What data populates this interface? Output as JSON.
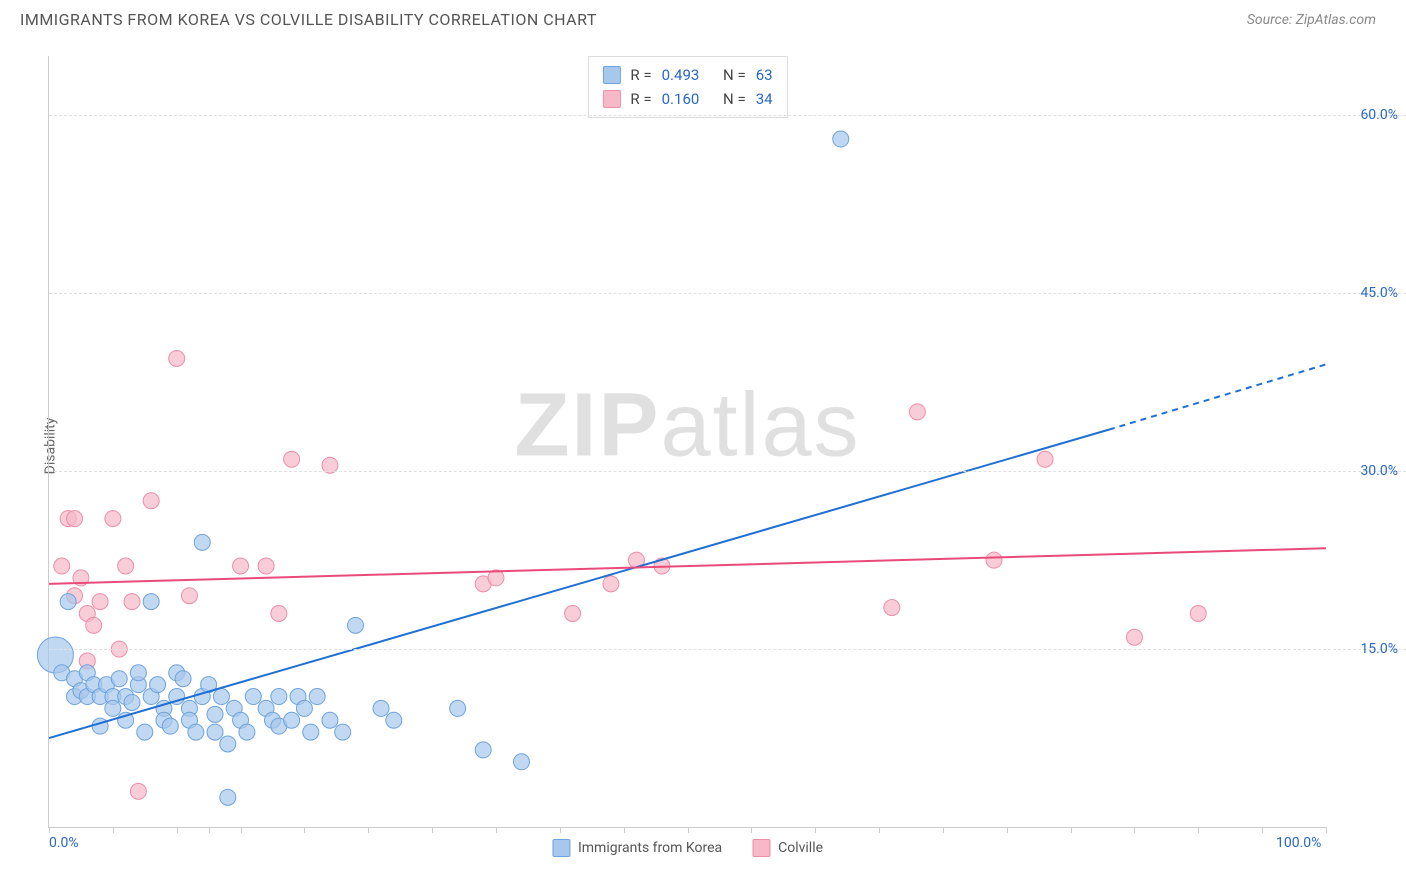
{
  "title": "IMMIGRANTS FROM KOREA VS COLVILLE DISABILITY CORRELATION CHART",
  "source_label": "Source: ZipAtlas.com",
  "y_axis_title": "Disability",
  "watermark": {
    "bold": "ZIP",
    "light": "atlas"
  },
  "chart": {
    "type": "scatter",
    "xlim": [
      0,
      100
    ],
    "ylim": [
      0,
      65
    ],
    "x_tick_positions": [
      0,
      5,
      10,
      12.5,
      15,
      20,
      25,
      30,
      35,
      40,
      45,
      50,
      55,
      60,
      65,
      70,
      75,
      80,
      85,
      90,
      95,
      100
    ],
    "x_tick_labels": [
      {
        "pos": 0,
        "text": "0.0%"
      },
      {
        "pos": 100,
        "text": "100.0%"
      }
    ],
    "y_gridlines": [
      15,
      30,
      45,
      60
    ],
    "y_tick_labels": [
      {
        "pos": 15,
        "text": "15.0%"
      },
      {
        "pos": 30,
        "text": "30.0%"
      },
      {
        "pos": 45,
        "text": "45.0%"
      },
      {
        "pos": 60,
        "text": "60.0%"
      }
    ],
    "background_color": "#ffffff",
    "grid_color": "#e0e0e0",
    "axis_color": "#cccccc",
    "series": [
      {
        "name": "Immigrants from Korea",
        "marker_fill": "#a7c8ec",
        "marker_stroke": "#6fa3db",
        "marker_opacity": 0.7,
        "marker_radius": 8,
        "line_color": "#1f6fd4",
        "line_width": 2,
        "regression": {
          "x1": 0,
          "y1": 7.5,
          "x2": 83,
          "y2": 33.5,
          "x3": 100,
          "y3": 39
        },
        "stats": {
          "R": "0.493",
          "N": "63"
        },
        "points": [
          {
            "x": 0.5,
            "y": 14.5,
            "r": 18
          },
          {
            "x": 1,
            "y": 13
          },
          {
            "x": 1.5,
            "y": 19
          },
          {
            "x": 2,
            "y": 11
          },
          {
            "x": 2,
            "y": 12.5
          },
          {
            "x": 2.5,
            "y": 11.5
          },
          {
            "x": 3,
            "y": 11
          },
          {
            "x": 3,
            "y": 13
          },
          {
            "x": 3.5,
            "y": 12
          },
          {
            "x": 4,
            "y": 11
          },
          {
            "x": 4,
            "y": 8.5
          },
          {
            "x": 4.5,
            "y": 12
          },
          {
            "x": 5,
            "y": 11
          },
          {
            "x": 5,
            "y": 10
          },
          {
            "x": 5.5,
            "y": 12.5
          },
          {
            "x": 6,
            "y": 11
          },
          {
            "x": 6,
            "y": 9
          },
          {
            "x": 6.5,
            "y": 10.5
          },
          {
            "x": 7,
            "y": 12
          },
          {
            "x": 7,
            "y": 13
          },
          {
            "x": 7.5,
            "y": 8
          },
          {
            "x": 8,
            "y": 11
          },
          {
            "x": 8,
            "y": 19
          },
          {
            "x": 8.5,
            "y": 12
          },
          {
            "x": 9,
            "y": 10
          },
          {
            "x": 9,
            "y": 9
          },
          {
            "x": 9.5,
            "y": 8.5
          },
          {
            "x": 10,
            "y": 11
          },
          {
            "x": 10,
            "y": 13
          },
          {
            "x": 10.5,
            "y": 12.5
          },
          {
            "x": 11,
            "y": 10
          },
          {
            "x": 11,
            "y": 9
          },
          {
            "x": 11.5,
            "y": 8
          },
          {
            "x": 12,
            "y": 11
          },
          {
            "x": 12,
            "y": 24
          },
          {
            "x": 12.5,
            "y": 12
          },
          {
            "x": 13,
            "y": 9.5
          },
          {
            "x": 13,
            "y": 8
          },
          {
            "x": 13.5,
            "y": 11
          },
          {
            "x": 14,
            "y": 7
          },
          {
            "x": 14,
            "y": 2.5
          },
          {
            "x": 14.5,
            "y": 10
          },
          {
            "x": 15,
            "y": 9
          },
          {
            "x": 15.5,
            "y": 8
          },
          {
            "x": 16,
            "y": 11
          },
          {
            "x": 17,
            "y": 10
          },
          {
            "x": 17.5,
            "y": 9
          },
          {
            "x": 18,
            "y": 8.5
          },
          {
            "x": 18,
            "y": 11
          },
          {
            "x": 19,
            "y": 9
          },
          {
            "x": 19.5,
            "y": 11
          },
          {
            "x": 20,
            "y": 10
          },
          {
            "x": 20.5,
            "y": 8
          },
          {
            "x": 21,
            "y": 11
          },
          {
            "x": 22,
            "y": 9
          },
          {
            "x": 23,
            "y": 8
          },
          {
            "x": 24,
            "y": 17
          },
          {
            "x": 26,
            "y": 10
          },
          {
            "x": 27,
            "y": 9
          },
          {
            "x": 32,
            "y": 10
          },
          {
            "x": 34,
            "y": 6.5
          },
          {
            "x": 37,
            "y": 5.5
          },
          {
            "x": 62,
            "y": 58
          }
        ]
      },
      {
        "name": "Colville",
        "marker_fill": "#f7b8c8",
        "marker_stroke": "#ec8fa8",
        "marker_opacity": 0.7,
        "marker_radius": 8,
        "line_color": "#e84a7a",
        "line_width": 2,
        "regression": {
          "x1": 0,
          "y1": 20.5,
          "x2": 100,
          "y2": 23.5
        },
        "stats": {
          "R": "0.160",
          "N": "34"
        },
        "points": [
          {
            "x": 1,
            "y": 22
          },
          {
            "x": 1.5,
            "y": 26
          },
          {
            "x": 2,
            "y": 26
          },
          {
            "x": 2,
            "y": 19.5
          },
          {
            "x": 2.5,
            "y": 21
          },
          {
            "x": 3,
            "y": 14
          },
          {
            "x": 3,
            "y": 18
          },
          {
            "x": 3.5,
            "y": 17
          },
          {
            "x": 4,
            "y": 19
          },
          {
            "x": 5,
            "y": 26
          },
          {
            "x": 5.5,
            "y": 15
          },
          {
            "x": 6,
            "y": 22
          },
          {
            "x": 6.5,
            "y": 19
          },
          {
            "x": 7,
            "y": 3
          },
          {
            "x": 8,
            "y": 27.5
          },
          {
            "x": 10,
            "y": 39.5
          },
          {
            "x": 11,
            "y": 19.5
          },
          {
            "x": 15,
            "y": 22
          },
          {
            "x": 17,
            "y": 22
          },
          {
            "x": 18,
            "y": 18
          },
          {
            "x": 19,
            "y": 31
          },
          {
            "x": 22,
            "y": 30.5
          },
          {
            "x": 34,
            "y": 20.5
          },
          {
            "x": 35,
            "y": 21
          },
          {
            "x": 41,
            "y": 18
          },
          {
            "x": 44,
            "y": 20.5
          },
          {
            "x": 46,
            "y": 22.5
          },
          {
            "x": 48,
            "y": 22
          },
          {
            "x": 66,
            "y": 18.5
          },
          {
            "x": 68,
            "y": 35
          },
          {
            "x": 74,
            "y": 22.5
          },
          {
            "x": 78,
            "y": 31
          },
          {
            "x": 85,
            "y": 16
          },
          {
            "x": 90,
            "y": 18
          }
        ]
      }
    ]
  },
  "stats_box": {
    "R_label": "R =",
    "N_label": "N ="
  },
  "legend": {
    "items": [
      {
        "label": "Immigrants from Korea",
        "fill": "#a7c8ec",
        "stroke": "#6fa3db"
      },
      {
        "label": "Colville",
        "fill": "#f7b8c8",
        "stroke": "#ec8fa8"
      }
    ]
  }
}
